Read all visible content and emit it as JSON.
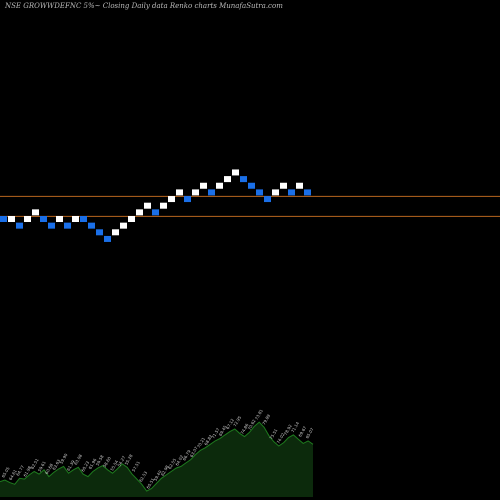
{
  "title": "NSE GROWWDEFNC 5%~ Closing Daily data Renko charts MunafaSutra.com",
  "colors": {
    "background": "#000000",
    "up_brick": "#ffffff",
    "down_brick": "#1a6fe8",
    "level_line": "#b8661e",
    "volume_fill": "#0c2a0c",
    "volume_line": "#1e7a1e",
    "volume_label": "#cccccc"
  },
  "chart_data": {
    "type": "renko",
    "title": "NSE GROWWDEFNC 5%~ Closing Daily data Renko charts MunafaSutra.com",
    "brick_size": "5%",
    "bricks": [
      {
        "level": 0,
        "dir": "down"
      },
      {
        "level": 0,
        "dir": "up"
      },
      {
        "level": -1,
        "dir": "down"
      },
      {
        "level": 0,
        "dir": "up"
      },
      {
        "level": 1,
        "dir": "up"
      },
      {
        "level": 0,
        "dir": "down"
      },
      {
        "level": -1,
        "dir": "down"
      },
      {
        "level": 0,
        "dir": "up"
      },
      {
        "level": -1,
        "dir": "down"
      },
      {
        "level": 0,
        "dir": "up"
      },
      {
        "level": 0,
        "dir": "down"
      },
      {
        "level": -1,
        "dir": "down"
      },
      {
        "level": -2,
        "dir": "down"
      },
      {
        "level": -3,
        "dir": "down"
      },
      {
        "level": -2,
        "dir": "up"
      },
      {
        "level": -1,
        "dir": "up"
      },
      {
        "level": 0,
        "dir": "up"
      },
      {
        "level": 1,
        "dir": "up"
      },
      {
        "level": 2,
        "dir": "up"
      },
      {
        "level": 1,
        "dir": "down"
      },
      {
        "level": 2,
        "dir": "up"
      },
      {
        "level": 3,
        "dir": "up"
      },
      {
        "level": 4,
        "dir": "up"
      },
      {
        "level": 3,
        "dir": "down"
      },
      {
        "level": 4,
        "dir": "up"
      },
      {
        "level": 5,
        "dir": "up"
      },
      {
        "level": 4,
        "dir": "down"
      },
      {
        "level": 5,
        "dir": "up"
      },
      {
        "level": 6,
        "dir": "up"
      },
      {
        "level": 7,
        "dir": "up"
      },
      {
        "level": 6,
        "dir": "down"
      },
      {
        "level": 5,
        "dir": "down"
      },
      {
        "level": 4,
        "dir": "down"
      },
      {
        "level": 3,
        "dir": "down"
      },
      {
        "level": 4,
        "dir": "up"
      },
      {
        "level": 5,
        "dir": "up"
      },
      {
        "level": 4,
        "dir": "down"
      },
      {
        "level": 5,
        "dir": "up"
      },
      {
        "level": 4,
        "dir": "down"
      }
    ],
    "level_lines_brick_level": [
      3.4,
      0.4
    ],
    "volume_area": [
      0.18,
      0.2,
      0.17,
      0.15,
      0.22,
      0.21,
      0.26,
      0.3,
      0.27,
      0.32,
      0.24,
      0.29,
      0.33,
      0.36,
      0.28,
      0.32,
      0.35,
      0.27,
      0.24,
      0.3,
      0.34,
      0.37,
      0.32,
      0.28,
      0.33,
      0.39,
      0.35,
      0.27,
      0.21,
      0.15,
      0.07,
      0.1,
      0.16,
      0.22,
      0.26,
      0.3,
      0.34,
      0.36,
      0.4,
      0.44,
      0.5,
      0.55,
      0.58,
      0.62,
      0.66,
      0.69,
      0.73,
      0.77,
      0.8,
      0.75,
      0.71,
      0.76,
      0.83,
      0.88,
      0.82,
      0.72,
      0.65,
      0.6,
      0.64,
      0.7,
      0.73,
      0.68,
      0.63,
      0.66,
      0.62
    ],
    "volume_labels": [
      "65.05",
      "64.61",
      "64.77",
      "61.98",
      "62.51",
      "59.61",
      "60.68",
      "63.63",
      "59.90",
      "61.39",
      "63.08",
      "60.23",
      "61.96",
      "59.58",
      "58.60",
      "55.54",
      "54.27",
      "55.28",
      "57.51",
      "62.53",
      "60.51",
      "59.40",
      "62.98",
      "62.55",
      "64.02",
      "66.79",
      "63.07",
      "70.21",
      "68.82",
      "71.57",
      "69.45",
      "67.12",
      "72.95",
      "74.86",
      "70.62",
      "73.81",
      "79.89",
      "75.51",
      "74.02",
      "78.92",
      "71.14",
      "69.67",
      "65.07"
    ]
  }
}
